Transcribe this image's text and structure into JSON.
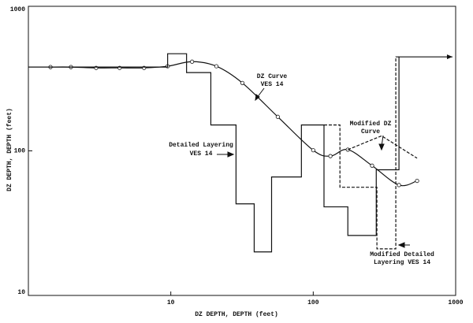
{
  "chart_data": {
    "type": "line",
    "xlabel": "DZ DEPTH, DEPTH (feet)",
    "ylabel": "DZ DEPTH, DEPTH (feet)",
    "xscale": "log",
    "yscale": "log",
    "xlim": [
      1,
      1000
    ],
    "ylim": [
      10,
      1000
    ],
    "xticks": [
      10,
      100,
      1000
    ],
    "yticks": [
      10,
      100,
      1000
    ],
    "series": [
      {
        "name": "DZ Curve",
        "color": "#111111",
        "style": "solid",
        "smooth": true,
        "markers": true,
        "x": [
          1.43,
          1.99,
          2.99,
          4.37,
          6.49,
          9.5,
          14.1,
          20.9,
          31.8,
          56.4,
          100,
          132,
          175,
          259,
          400,
          536
        ],
        "values": [
          380,
          380,
          375,
          375,
          375,
          385,
          414,
          385,
          295,
          172,
          101,
          92,
          102,
          79,
          58,
          62
        ]
      },
      {
        "name": "Detailed Layering",
        "color": "#111111",
        "style": "solid",
        "step": true,
        "x": [
          1,
          9.5,
          12.9,
          19.1,
          28.7,
          38.5,
          51,
          82.6,
          119,
          175,
          277,
          400,
          950
        ],
        "values": [
          380,
          470,
          348,
          151,
          43,
          20,
          66,
          151,
          41,
          26,
          74,
          447,
          447
        ]
      },
      {
        "name": "Modified DZ Curve",
        "color": "#111111",
        "style": "dashed",
        "x": [
          175,
          302,
          536
        ],
        "values": [
          102,
          127,
          89
        ]
      },
      {
        "name": "Modified Detailed Layering",
        "color": "#111111",
        "style": "dashed",
        "step": true,
        "x": [
          119,
          154,
          280,
          380,
          400
        ],
        "values": [
          151,
          56,
          21,
          447,
          447
        ]
      }
    ],
    "annotations": [
      {
        "lines": [
          "DZ Curve",
          "VES 14"
        ]
      },
      {
        "lines": [
          "Detailed Layering",
          "VES 14"
        ]
      },
      {
        "lines": [
          "Modified DZ",
          "Curve"
        ]
      },
      {
        "lines": [
          "Modified Detailed",
          "Layering VES 14"
        ]
      }
    ]
  }
}
